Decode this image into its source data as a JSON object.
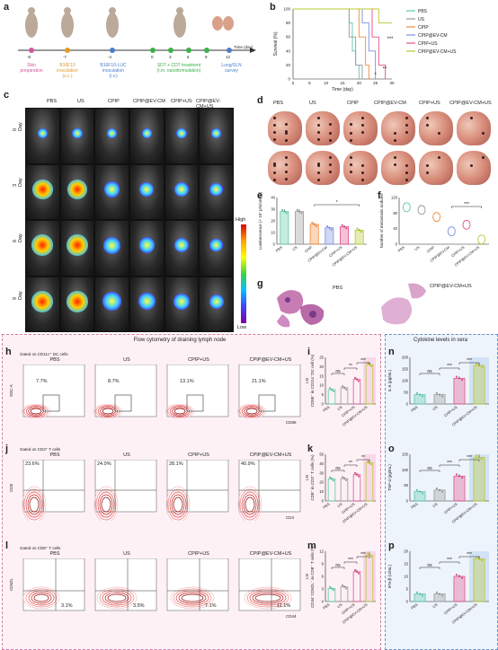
{
  "panels": {
    "a": "a",
    "b": "b",
    "c": "c",
    "d": "d",
    "e": "e",
    "f": "f",
    "g": "g",
    "h": "h",
    "i": "i",
    "j": "j",
    "k": "k",
    "l": "l",
    "m": "m",
    "n": "n",
    "o": "o",
    "p": "p"
  },
  "timeline": {
    "days": [
      "-8",
      "-7",
      "-4",
      "0",
      "3",
      "6",
      "9",
      "12"
    ],
    "axis_label": "Time (day)",
    "events": [
      {
        "label": "Skin\npreparation",
        "color": "#d3559a"
      },
      {
        "label": "B16F10\ninoculation\n(s.c.)",
        "color": "#e39a24"
      },
      {
        "label": "B16F10-LUC\ninoculation\n(i.v.)",
        "color": "#4a7cc8"
      },
      {
        "label": "SDT + CDT treatment\n(i.m.   nanoformulation)",
        "color": "#3ab04a"
      },
      {
        "label": "Lung/SLN\nsurvey",
        "color": "#4a7cc8"
      }
    ]
  },
  "groups6": [
    "PBS",
    "US",
    "CPIP",
    "CPIP@EV-CM",
    "CPIP+US",
    "CPIP@EV-CM+US"
  ],
  "groups4": [
    "PBS",
    "US",
    "CPIP+US",
    "CPIP@EV-CM+US"
  ],
  "ivis_days": [
    "0 Day",
    "3 Day",
    "6 Day",
    "9 Day"
  ],
  "colorbar": {
    "high": "High",
    "low": "Low"
  },
  "g_labels": {
    "left": "PBS",
    "right": "CPIP@EV-CM+US"
  },
  "flow_title": "Flow cytometry of draining lymph node",
  "cytokine_title": "Cytokine levels in sera",
  "gates": {
    "h": "Gated on CD11c⁺ DC cells",
    "j": "Gated on CD3⁺ T cells",
    "l": "Gated on CD8⁺ T cells"
  },
  "h_percent": [
    "7.7%",
    "8.7%",
    "13.1%",
    "21.1%"
  ],
  "h_axes": {
    "y": "SSC-A",
    "x": "CD86"
  },
  "j_percent": [
    "23.6%",
    "24.0%",
    "28.1%",
    "40.9%"
  ],
  "j_axes": {
    "y": "CD8",
    "x": "CD4"
  },
  "l_percent": [
    "3.1%",
    "3.5%",
    "7.1%",
    "11.1%"
  ],
  "l_axes": {
    "y": "CD62L",
    "x": "CD44"
  },
  "sig": {
    "ns": "ns",
    "two": "**",
    "three": "***",
    "one": "*"
  },
  "colors": {
    "PBS": "#5cc8a8",
    "US": "#999999",
    "CPIP": "#f08a3a",
    "CPIP@EV-CM": "#7b8ee0",
    "CPIP+US": "#e0508a",
    "CPIP@EV-CM+US": "#b8c830"
  },
  "chart_data": [
    {
      "type": "line",
      "panel": "b",
      "xlabel": "Time (day)",
      "ylabel": "Survival (%)",
      "xlim": [
        0,
        30
      ],
      "ylim": [
        0,
        100
      ],
      "xticks": [
        "0",
        "5",
        "10",
        "15",
        "20",
        "25",
        "30"
      ],
      "yticks": [
        "0",
        "20",
        "40",
        "60",
        "80",
        "100"
      ],
      "series": [
        {
          "name": "PBS",
          "values": [
            [
              0,
              100
            ],
            [
              17,
              100
            ],
            [
              17,
              80
            ],
            [
              18,
              80
            ],
            [
              18,
              40
            ],
            [
              19,
              40
            ],
            [
              19,
              20
            ],
            [
              20,
              20
            ],
            [
              20,
              0
            ]
          ]
        },
        {
          "name": "US",
          "values": [
            [
              0,
              100
            ],
            [
              17,
              100
            ],
            [
              17,
              60
            ],
            [
              19,
              60
            ],
            [
              19,
              20
            ],
            [
              21,
              20
            ],
            [
              21,
              0
            ]
          ]
        },
        {
          "name": "CPIP",
          "values": [
            [
              0,
              100
            ],
            [
              20,
              100
            ],
            [
              20,
              60
            ],
            [
              22,
              60
            ],
            [
              22,
              20
            ],
            [
              23,
              20
            ],
            [
              23,
              0
            ]
          ]
        },
        {
          "name": "CPIP@EV-CM",
          "values": [
            [
              0,
              100
            ],
            [
              21,
              100
            ],
            [
              21,
              80
            ],
            [
              23,
              80
            ],
            [
              23,
              40
            ],
            [
              25,
              40
            ],
            [
              25,
              0
            ]
          ]
        },
        {
          "name": "CPIP+US",
          "values": [
            [
              0,
              100
            ],
            [
              24,
              100
            ],
            [
              24,
              60
            ],
            [
              26,
              60
            ],
            [
              26,
              20
            ],
            [
              28,
              20
            ],
            [
              28,
              0
            ]
          ]
        },
        {
          "name": "CPIP@EV-CM+US",
          "values": [
            [
              0,
              100
            ],
            [
              26,
              100
            ],
            [
              26,
              80
            ],
            [
              30,
              80
            ]
          ]
        }
      ],
      "annotations": [
        "***",
        "**",
        "*"
      ]
    },
    {
      "type": "bar",
      "panel": "e",
      "ylabel": "Luminescence (× 10⁷ p/s/cm²/sr)",
      "ylim": [
        0,
        40
      ],
      "yticks": [
        "0",
        "10",
        "20",
        "30",
        "40"
      ],
      "categories": [
        "PBS",
        "US",
        "CPIP",
        "CPIP@EV-CM",
        "CPIP+US",
        "CPIP@EV-CM+US"
      ],
      "values": [
        28,
        28,
        17,
        14,
        15,
        12
      ],
      "annotations": [
        "*"
      ]
    },
    {
      "type": "scatter",
      "panel": "f",
      "ylabel": "Number of metastasis nodules",
      "ylim": [
        0,
        120
      ],
      "yticks": [
        "0",
        "40",
        "80",
        "120"
      ],
      "categories": [
        "PBS",
        "US",
        "CPIP",
        "CPIP@EV-CM",
        "CPIP+US",
        "CPIP@EV-CM+US"
      ],
      "values": [
        95,
        88,
        70,
        33,
        50,
        12
      ],
      "annotations": [
        "***"
      ]
    },
    {
      "type": "bar",
      "panel": "i",
      "ylabel": "LN\nCD86⁺ in CD11c⁺DC cell (%)",
      "ylim": [
        0,
        25
      ],
      "yticks": [
        "0",
        "5",
        "10",
        "15",
        "20",
        "25"
      ],
      "categories": [
        "PBS",
        "US",
        "CPIP+US",
        "CPIP@EV-CM+US"
      ],
      "values": [
        7.7,
        8.7,
        13.1,
        21.1
      ],
      "annotations": [
        "ns",
        "**",
        "***"
      ]
    },
    {
      "type": "bar",
      "panel": "k",
      "ylabel": "LN\nCD8⁺ in CD3⁺ T cells (%)",
      "ylim": [
        0,
        50
      ],
      "yticks": [
        "0",
        "10",
        "20",
        "30",
        "40",
        "50"
      ],
      "categories": [
        "PBS",
        "US",
        "CPIP+US",
        "CPIP@EV-CM+US"
      ],
      "values": [
        23.6,
        24.0,
        28.1,
        40.9
      ],
      "annotations": [
        "ns",
        "**",
        "**"
      ]
    },
    {
      "type": "bar",
      "panel": "m",
      "ylabel": "LN\nCD44⁺CD62L⁻ in CD8⁺ T cells (%)",
      "ylim": [
        0,
        12
      ],
      "yticks": [
        "0",
        "3",
        "6",
        "9",
        "12"
      ],
      "categories": [
        "PBS",
        "US",
        "CPIP+US",
        "CPIP@EV-CM+US"
      ],
      "values": [
        3.1,
        3.5,
        7.1,
        11.1
      ],
      "annotations": [
        "ns",
        "***",
        "***"
      ]
    },
    {
      "type": "bar",
      "panel": "n",
      "ylabel": "IL-6 (pg/mL)",
      "ylim": [
        0,
        200
      ],
      "yticks": [
        "0",
        "50",
        "100",
        "150",
        "200"
      ],
      "categories": [
        "PBS",
        "US",
        "CPIP+US",
        "CPIP@EV-CM+US"
      ],
      "values": [
        40,
        40,
        110,
        165
      ],
      "annotations": [
        "ns",
        "***",
        "***"
      ]
    },
    {
      "type": "bar",
      "panel": "o",
      "ylabel": "TNF-α (pg/mL)",
      "ylim": [
        0,
        150
      ],
      "yticks": [
        "0",
        "50",
        "100",
        "150"
      ],
      "categories": [
        "PBS",
        "US",
        "CPIP+US",
        "CPIP@EV-CM+US"
      ],
      "values": [
        30,
        35,
        80,
        140
      ],
      "annotations": [
        "ns",
        "***",
        "***"
      ]
    },
    {
      "type": "bar",
      "panel": "p",
      "ylabel": "IFN-β (U/mL)",
      "ylim": [
        0,
        20
      ],
      "yticks": [
        "0",
        "5",
        "10",
        "15",
        "20"
      ],
      "categories": [
        "PBS",
        "US",
        "CPIP+US",
        "CPIP@EV-CM+US"
      ],
      "values": [
        3,
        3,
        10,
        17
      ],
      "annotations": [
        "ns",
        "***",
        "***"
      ]
    }
  ]
}
